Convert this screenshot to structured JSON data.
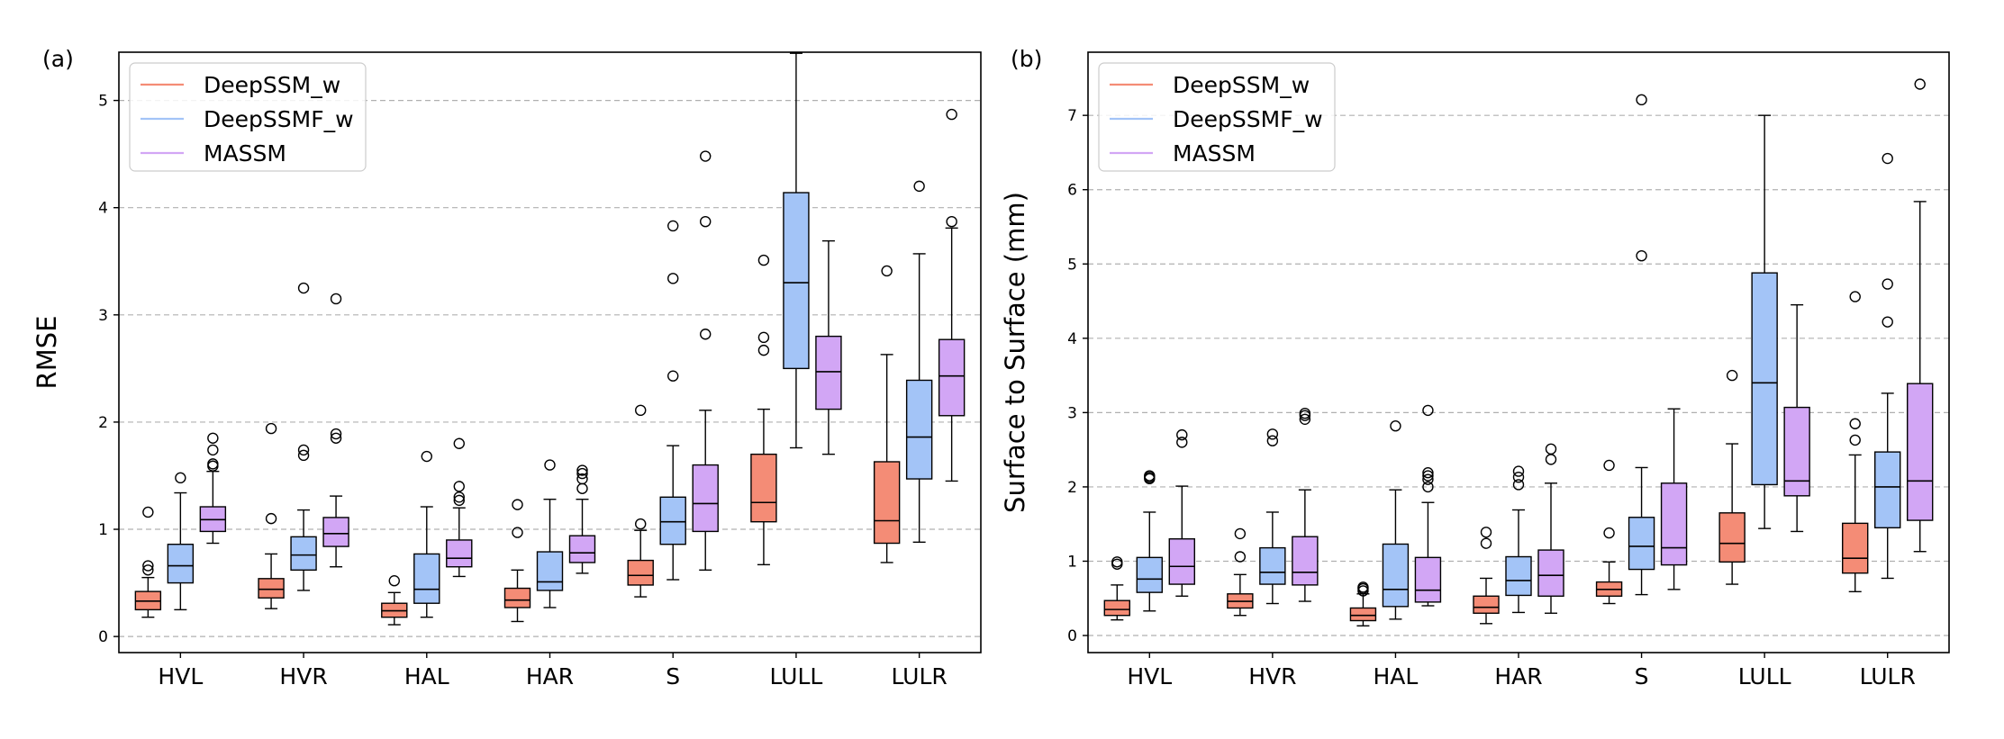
{
  "colors": {
    "DeepSSM_w": "#f48c76",
    "DeepSSMF_w": "#a3c4f7",
    "MASSM": "#d2a6f5"
  },
  "chart_data": [
    {
      "type": "box",
      "panel_label": "(a)",
      "title": "",
      "xlabel": "",
      "ylabel": "RMSE",
      "ylim": [
        -0.15,
        5.45
      ],
      "yticks": [
        0,
        1,
        2,
        3,
        4,
        5
      ],
      "grid": "y-dashed",
      "legend_position": "top-left",
      "categories": [
        "HVL",
        "HVR",
        "HAL",
        "HAR",
        "S",
        "LULL",
        "LULR"
      ],
      "series": [
        {
          "name": "DeepSSM_w",
          "boxes": [
            {
              "min": 0.18,
              "q1": 0.25,
              "median": 0.33,
              "q3": 0.42,
              "max": 0.55,
              "outliers": [
                0.62,
                0.66,
                1.16
              ]
            },
            {
              "min": 0.26,
              "q1": 0.36,
              "median": 0.44,
              "q3": 0.54,
              "max": 0.77,
              "outliers": [
                1.1,
                1.94
              ]
            },
            {
              "min": 0.11,
              "q1": 0.18,
              "median": 0.24,
              "q3": 0.31,
              "max": 0.41,
              "outliers": [
                0.52
              ]
            },
            {
              "min": 0.14,
              "q1": 0.27,
              "median": 0.34,
              "q3": 0.45,
              "max": 0.62,
              "outliers": [
                0.97,
                1.23
              ]
            },
            {
              "min": 0.37,
              "q1": 0.48,
              "median": 0.57,
              "q3": 0.71,
              "max": 0.99,
              "outliers": [
                1.05,
                2.11
              ]
            },
            {
              "min": 0.67,
              "q1": 1.07,
              "median": 1.25,
              "q3": 1.7,
              "max": 2.12,
              "outliers": [
                2.67,
                2.79,
                3.51
              ]
            },
            {
              "min": 0.69,
              "q1": 0.87,
              "median": 1.08,
              "q3": 1.63,
              "max": 2.63,
              "outliers": [
                3.41
              ]
            }
          ]
        },
        {
          "name": "DeepSSMF_w",
          "boxes": [
            {
              "min": 0.25,
              "q1": 0.5,
              "median": 0.66,
              "q3": 0.86,
              "max": 1.34,
              "outliers": [
                1.48
              ]
            },
            {
              "min": 0.43,
              "q1": 0.62,
              "median": 0.76,
              "q3": 0.93,
              "max": 1.18,
              "outliers": [
                1.69,
                1.74,
                3.25
              ]
            },
            {
              "min": 0.18,
              "q1": 0.31,
              "median": 0.44,
              "q3": 0.77,
              "max": 1.21,
              "outliers": [
                1.68
              ]
            },
            {
              "min": 0.27,
              "q1": 0.43,
              "median": 0.51,
              "q3": 0.79,
              "max": 1.28,
              "outliers": [
                1.6
              ]
            },
            {
              "min": 0.53,
              "q1": 0.86,
              "median": 1.07,
              "q3": 1.3,
              "max": 1.78,
              "outliers": [
                2.43,
                3.34,
                3.83
              ]
            },
            {
              "min": 1.76,
              "q1": 2.5,
              "median": 3.3,
              "q3": 4.14,
              "max": 5.44,
              "outliers": []
            },
            {
              "min": 0.88,
              "q1": 1.47,
              "median": 1.86,
              "q3": 2.39,
              "max": 3.57,
              "outliers": [
                4.2
              ]
            }
          ]
        },
        {
          "name": "MASSM",
          "boxes": [
            {
              "min": 0.87,
              "q1": 0.98,
              "median": 1.09,
              "q3": 1.21,
              "max": 1.54,
              "outliers": [
                1.59,
                1.61,
                1.74,
                1.85
              ]
            },
            {
              "min": 0.65,
              "q1": 0.84,
              "median": 0.96,
              "q3": 1.11,
              "max": 1.31,
              "outliers": [
                1.85,
                1.89,
                3.15
              ]
            },
            {
              "min": 0.56,
              "q1": 0.65,
              "median": 0.73,
              "q3": 0.9,
              "max": 1.2,
              "outliers": [
                1.27,
                1.3,
                1.4,
                1.8
              ]
            },
            {
              "min": 0.59,
              "q1": 0.69,
              "median": 0.78,
              "q3": 0.94,
              "max": 1.28,
              "outliers": [
                1.38,
                1.47,
                1.52,
                1.55
              ]
            },
            {
              "min": 0.62,
              "q1": 0.98,
              "median": 1.24,
              "q3": 1.6,
              "max": 2.11,
              "outliers": [
                2.82,
                3.87,
                4.48
              ]
            },
            {
              "min": 1.7,
              "q1": 2.12,
              "median": 2.47,
              "q3": 2.8,
              "max": 3.69,
              "outliers": []
            },
            {
              "min": 1.45,
              "q1": 2.06,
              "median": 2.43,
              "q3": 2.77,
              "max": 3.81,
              "outliers": [
                3.87,
                4.87
              ]
            }
          ]
        }
      ]
    },
    {
      "type": "box",
      "panel_label": "(b)",
      "title": "",
      "xlabel": "",
      "ylabel": "Surface to Surface (mm)",
      "ylim": [
        -0.23,
        7.85
      ],
      "yticks": [
        0,
        1,
        2,
        3,
        4,
        5,
        6,
        7
      ],
      "grid": "y-dashed",
      "legend_position": "top-left",
      "categories": [
        "HVL",
        "HVR",
        "HAL",
        "HAR",
        "S",
        "LULL",
        "LULR"
      ],
      "series": [
        {
          "name": "DeepSSM_w",
          "boxes": [
            {
              "min": 0.21,
              "q1": 0.27,
              "median": 0.35,
              "q3": 0.47,
              "max": 0.68,
              "outliers": [
                0.96,
                0.99
              ]
            },
            {
              "min": 0.27,
              "q1": 0.37,
              "median": 0.46,
              "q3": 0.56,
              "max": 0.82,
              "outliers": [
                1.06,
                1.37
              ]
            },
            {
              "min": 0.13,
              "q1": 0.2,
              "median": 0.27,
              "q3": 0.37,
              "max": 0.56,
              "outliers": [
                0.6,
                0.63,
                0.65
              ]
            },
            {
              "min": 0.16,
              "q1": 0.3,
              "median": 0.38,
              "q3": 0.53,
              "max": 0.77,
              "outliers": [
                1.24,
                1.39
              ]
            },
            {
              "min": 0.43,
              "q1": 0.53,
              "median": 0.62,
              "q3": 0.72,
              "max": 0.99,
              "outliers": [
                1.38,
                2.29
              ]
            },
            {
              "min": 0.69,
              "q1": 0.99,
              "median": 1.24,
              "q3": 1.65,
              "max": 2.58,
              "outliers": [
                3.5
              ]
            },
            {
              "min": 0.59,
              "q1": 0.84,
              "median": 1.04,
              "q3": 1.51,
              "max": 2.43,
              "outliers": [
                2.63,
                2.85,
                4.56
              ]
            }
          ]
        },
        {
          "name": "DeepSSMF_w",
          "boxes": [
            {
              "min": 0.33,
              "q1": 0.58,
              "median": 0.76,
              "q3": 1.05,
              "max": 1.66,
              "outliers": [
                2.11,
                2.13,
                2.15
              ]
            },
            {
              "min": 0.43,
              "q1": 0.69,
              "median": 0.85,
              "q3": 1.18,
              "max": 1.66,
              "outliers": [
                2.62,
                2.71
              ]
            },
            {
              "min": 0.22,
              "q1": 0.39,
              "median": 0.62,
              "q3": 1.23,
              "max": 1.96,
              "outliers": [
                2.82
              ]
            },
            {
              "min": 0.31,
              "q1": 0.54,
              "median": 0.74,
              "q3": 1.06,
              "max": 1.69,
              "outliers": [
                2.03,
                2.13,
                2.21
              ]
            },
            {
              "min": 0.55,
              "q1": 0.89,
              "median": 1.2,
              "q3": 1.59,
              "max": 2.26,
              "outliers": [
                5.11,
                7.21
              ]
            },
            {
              "min": 1.44,
              "q1": 2.03,
              "median": 3.4,
              "q3": 4.88,
              "max": 7.0,
              "outliers": []
            },
            {
              "min": 0.77,
              "q1": 1.45,
              "median": 2.0,
              "q3": 2.47,
              "max": 3.26,
              "outliers": [
                4.22,
                4.73,
                6.42
              ]
            }
          ]
        },
        {
          "name": "MASSM",
          "boxes": [
            {
              "min": 0.53,
              "q1": 0.69,
              "median": 0.93,
              "q3": 1.3,
              "max": 2.01,
              "outliers": [
                2.6,
                2.7
              ]
            },
            {
              "min": 0.46,
              "q1": 0.68,
              "median": 0.85,
              "q3": 1.33,
              "max": 1.96,
              "outliers": [
                2.91,
                2.96,
                2.99
              ]
            },
            {
              "min": 0.4,
              "q1": 0.45,
              "median": 0.61,
              "q3": 1.05,
              "max": 1.79,
              "outliers": [
                2.0,
                2.1,
                2.15,
                2.19,
                3.03
              ]
            },
            {
              "min": 0.3,
              "q1": 0.53,
              "median": 0.81,
              "q3": 1.15,
              "max": 2.05,
              "outliers": [
                2.37,
                2.51
              ]
            },
            {
              "min": 0.62,
              "q1": 0.95,
              "median": 1.18,
              "q3": 2.05,
              "max": 3.05,
              "outliers": []
            },
            {
              "min": 1.4,
              "q1": 1.88,
              "median": 2.08,
              "q3": 3.07,
              "max": 4.45,
              "outliers": []
            },
            {
              "min": 1.13,
              "q1": 1.55,
              "median": 2.08,
              "q3": 3.39,
              "max": 5.84,
              "outliers": [
                7.42
              ]
            }
          ]
        }
      ]
    }
  ]
}
